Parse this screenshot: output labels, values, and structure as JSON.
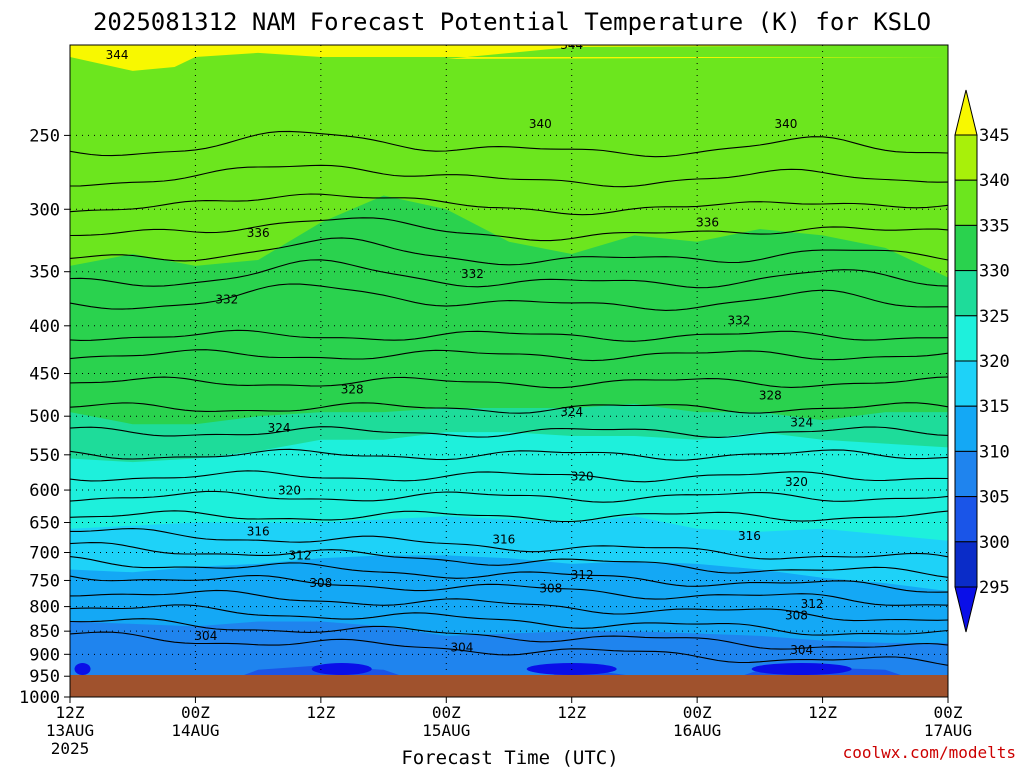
{
  "title": "2025081312 NAM Forecast Potential Temperature (K) for KSLO",
  "xlabel": "Forecast Time (UTC)",
  "credit": "coolwx.com/modelts",
  "chart_data": {
    "type": "contour",
    "title": "2025081312 NAM Forecast Potential Temperature (K) for KSLO",
    "xlabel": "Forecast Time (UTC)",
    "ylabel": "",
    "y_scale": "log-pressure",
    "y_ticks": [
      250,
      300,
      350,
      400,
      450,
      500,
      550,
      600,
      650,
      700,
      750,
      800,
      850,
      900,
      950,
      1000
    ],
    "x_ticks": [
      {
        "hour": 0,
        "line1": "12Z",
        "line2": "13AUG",
        "line3": "2025"
      },
      {
        "hour": 12,
        "line1": "00Z",
        "line2": "14AUG",
        "line3": ""
      },
      {
        "hour": 24,
        "line1": "12Z",
        "line2": "",
        "line3": ""
      },
      {
        "hour": 36,
        "line1": "00Z",
        "line2": "15AUG",
        "line3": ""
      },
      {
        "hour": 48,
        "line1": "12Z",
        "line2": "",
        "line3": ""
      },
      {
        "hour": 60,
        "line1": "00Z",
        "line2": "16AUG",
        "line3": ""
      },
      {
        "hour": 72,
        "line1": "12Z",
        "line2": "",
        "line3": ""
      },
      {
        "hour": 84,
        "line1": "00Z",
        "line2": "17AUG",
        "line3": ""
      }
    ],
    "grid": true,
    "colorbar": {
      "levels": [
        295,
        300,
        305,
        310,
        315,
        320,
        325,
        330,
        335,
        340,
        345
      ],
      "colors": [
        "#0a0fe8",
        "#0a2cc8",
        "#1a55e8",
        "#1f84ee",
        "#14a8f5",
        "#1ed2f8",
        "#1ef0dc",
        "#1edc9a",
        "#2ad24e",
        "#6ce61e",
        "#a8f00a",
        "#f8f800"
      ]
    },
    "contour_labels": [
      {
        "hour": 4.5,
        "p": 205,
        "v": "344"
      },
      {
        "hour": 48,
        "p": 200,
        "v": "344"
      },
      {
        "hour": 45,
        "p": 243,
        "v": "340"
      },
      {
        "hour": 68.5,
        "p": 243,
        "v": "340"
      },
      {
        "hour": 18,
        "p": 318,
        "v": "336"
      },
      {
        "hour": 61,
        "p": 310,
        "v": "336"
      },
      {
        "hour": 15,
        "p": 375,
        "v": "332"
      },
      {
        "hour": 38.5,
        "p": 352,
        "v": "332"
      },
      {
        "hour": 64,
        "p": 395,
        "v": "332"
      },
      {
        "hour": 27,
        "p": 468,
        "v": "328"
      },
      {
        "hour": 67,
        "p": 475,
        "v": "328"
      },
      {
        "hour": 20,
        "p": 515,
        "v": "324"
      },
      {
        "hour": 48,
        "p": 495,
        "v": "324"
      },
      {
        "hour": 70,
        "p": 508,
        "v": "324"
      },
      {
        "hour": 21,
        "p": 601,
        "v": "320"
      },
      {
        "hour": 49,
        "p": 580,
        "v": "320"
      },
      {
        "hour": 69.5,
        "p": 588,
        "v": "320"
      },
      {
        "hour": 18,
        "p": 665,
        "v": "316"
      },
      {
        "hour": 41.5,
        "p": 678,
        "v": "316"
      },
      {
        "hour": 65,
        "p": 672,
        "v": "316"
      },
      {
        "hour": 22,
        "p": 705,
        "v": "312"
      },
      {
        "hour": 49,
        "p": 740,
        "v": "312"
      },
      {
        "hour": 71,
        "p": 795,
        "v": "312"
      },
      {
        "hour": 24,
        "p": 755,
        "v": "308"
      },
      {
        "hour": 46,
        "p": 765,
        "v": "308"
      },
      {
        "hour": 69.5,
        "p": 818,
        "v": "308"
      },
      {
        "hour": 13,
        "p": 860,
        "v": "304"
      },
      {
        "hour": 37.5,
        "p": 885,
        "v": "304"
      },
      {
        "hour": 70,
        "p": 890,
        "v": "304"
      }
    ]
  }
}
